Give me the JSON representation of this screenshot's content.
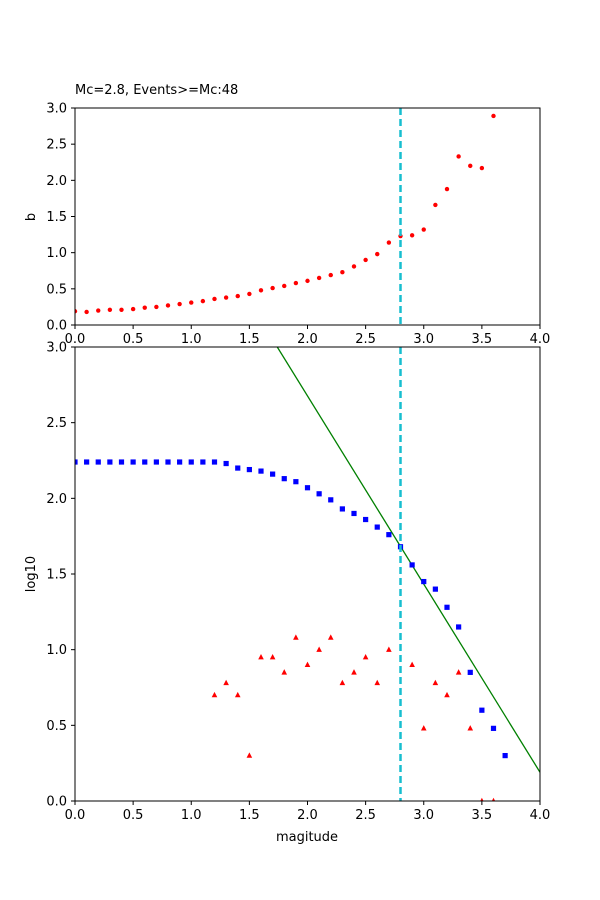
{
  "chart_data": [
    {
      "type": "scatter",
      "title": "Mc=2.8, Events>=Mc:48",
      "xlabel": "",
      "ylabel": "b",
      "xlim": [
        0,
        4.0
      ],
      "ylim": [
        0,
        3.0
      ],
      "xticks": [
        "0.0",
        "0.5",
        "1.0",
        "1.5",
        "2.0",
        "2.5",
        "3.0",
        "3.5",
        "4.0"
      ],
      "yticks": [
        "0.0",
        "0.5",
        "1.0",
        "1.5",
        "2.0",
        "2.5",
        "3.0"
      ],
      "mc_line_x": 2.8,
      "mc_line_color": "#17becf",
      "series": [
        {
          "marker": "circle",
          "color": "#ff0000",
          "x": [
            0.0,
            0.1,
            0.2,
            0.3,
            0.4,
            0.5,
            0.6,
            0.7,
            0.8,
            0.9,
            1.0,
            1.1,
            1.2,
            1.3,
            1.4,
            1.5,
            1.6,
            1.7,
            1.8,
            1.9,
            2.0,
            2.1,
            2.2,
            2.3,
            2.4,
            2.5,
            2.6,
            2.7,
            2.8,
            2.9,
            3.0,
            3.1,
            3.2,
            3.3,
            3.4,
            3.5,
            3.6
          ],
          "y": [
            0.19,
            0.18,
            0.2,
            0.21,
            0.21,
            0.22,
            0.24,
            0.25,
            0.27,
            0.29,
            0.31,
            0.33,
            0.36,
            0.38,
            0.4,
            0.43,
            0.48,
            0.51,
            0.54,
            0.58,
            0.61,
            0.65,
            0.69,
            0.73,
            0.81,
            0.9,
            0.98,
            1.14,
            1.23,
            1.24,
            1.32,
            1.66,
            1.88,
            2.33,
            2.2,
            2.17,
            2.89
          ]
        }
      ]
    },
    {
      "type": "scatter",
      "title": "",
      "xlabel": "magitude",
      "ylabel": "log10",
      "xlim": [
        0,
        4.0
      ],
      "ylim": [
        0,
        3.0
      ],
      "xticks": [
        "0.0",
        "0.5",
        "1.0",
        "1.5",
        "2.0",
        "2.5",
        "3.0",
        "3.5",
        "4.0"
      ],
      "yticks": [
        "0.0",
        "0.5",
        "1.0",
        "1.5",
        "2.0",
        "2.5",
        "3.0"
      ],
      "mc_line_x": 2.8,
      "mc_line_color": "#17becf",
      "fit_line": {
        "color": "#008000",
        "x": [
          1.74,
          4.0
        ],
        "y": [
          3.0,
          0.19
        ]
      },
      "series": [
        {
          "marker": "square",
          "color": "#0000ff",
          "x": [
            0.0,
            0.1,
            0.2,
            0.3,
            0.4,
            0.5,
            0.6,
            0.7,
            0.8,
            0.9,
            1.0,
            1.1,
            1.2,
            1.3,
            1.4,
            1.5,
            1.6,
            1.7,
            1.8,
            1.9,
            2.0,
            2.1,
            2.2,
            2.3,
            2.4,
            2.5,
            2.6,
            2.7,
            2.8,
            2.9,
            3.0,
            3.1,
            3.2,
            3.3,
            3.4,
            3.5,
            3.6,
            3.7
          ],
          "y": [
            2.24,
            2.24,
            2.24,
            2.24,
            2.24,
            2.24,
            2.24,
            2.24,
            2.24,
            2.24,
            2.24,
            2.24,
            2.24,
            2.23,
            2.2,
            2.19,
            2.18,
            2.16,
            2.13,
            2.11,
            2.07,
            2.03,
            1.99,
            1.93,
            1.9,
            1.86,
            1.81,
            1.76,
            1.68,
            1.56,
            1.45,
            1.4,
            1.28,
            1.15,
            0.85,
            0.6,
            0.48,
            0.3
          ]
        },
        {
          "marker": "triangle",
          "color": "#ff0000",
          "x": [
            1.2,
            1.3,
            1.4,
            1.5,
            1.6,
            1.7,
            1.8,
            1.9,
            2.0,
            2.1,
            2.2,
            2.3,
            2.4,
            2.5,
            2.6,
            2.7,
            2.9,
            3.0,
            3.1,
            3.2,
            3.3,
            3.4,
            3.5,
            3.6
          ],
          "y": [
            0.7,
            0.78,
            0.7,
            0.3,
            0.95,
            0.95,
            0.85,
            1.08,
            0.9,
            1.0,
            1.08,
            0.78,
            0.85,
            0.95,
            0.78,
            1.0,
            0.9,
            0.48,
            0.78,
            0.7,
            0.85,
            0.48,
            0.0,
            0.0
          ]
        }
      ]
    }
  ]
}
